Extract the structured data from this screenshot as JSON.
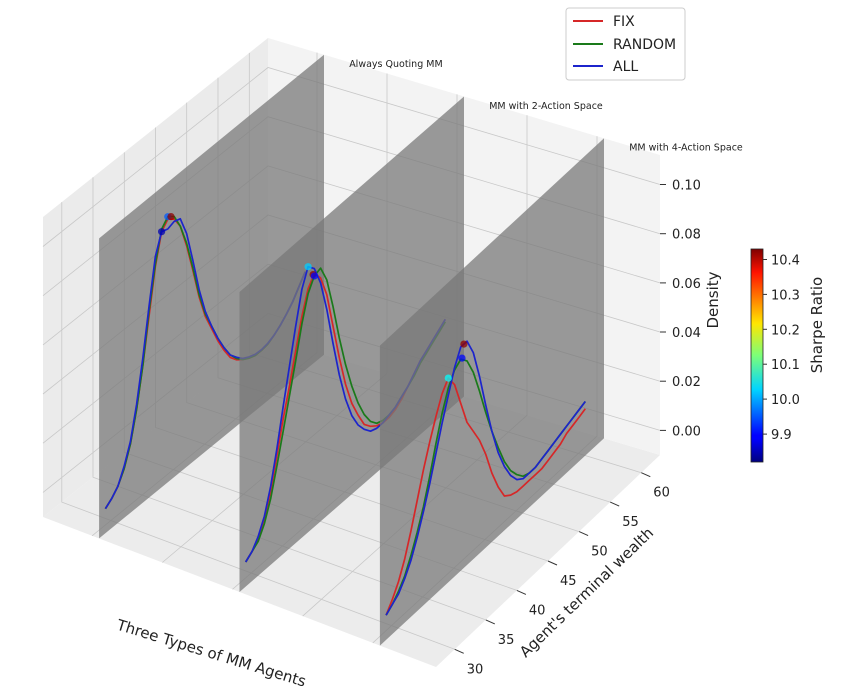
{
  "chart_data": {
    "type": "line",
    "projection": "3d",
    "xlabel": "Three Types of MM Agents",
    "ylabel": "Agent's terminal wealth",
    "zlabel": "Density",
    "y_ticks": [
      "30",
      "35",
      "40",
      "45",
      "50",
      "55",
      "60"
    ],
    "z_ticks": [
      "0.00",
      "0.02",
      "0.04",
      "0.06",
      "0.08",
      "0.10"
    ],
    "ylim": [
      27,
      63
    ],
    "zlim": [
      -0.01,
      0.112
    ],
    "panels": [
      {
        "label": "Always Quoting MM"
      },
      {
        "label": "MM with 2-Action Space"
      },
      {
        "label": "MM with 4-Action Space"
      }
    ],
    "x": [
      28,
      29,
      30,
      31,
      32,
      33,
      34,
      35,
      36,
      37,
      38,
      39,
      40,
      41,
      42,
      43,
      44,
      45,
      46,
      47,
      48,
      49,
      50,
      51,
      52,
      53,
      54,
      55,
      56,
      57,
      58,
      59,
      60
    ],
    "series": [
      {
        "name": "FIX",
        "color": "#d62728",
        "values": [
          [
            0.0,
            0.002,
            0.005,
            0.01,
            0.018,
            0.03,
            0.046,
            0.064,
            0.082,
            0.094,
            0.097,
            0.095,
            0.09,
            0.08,
            0.068,
            0.055,
            0.045,
            0.038,
            0.031,
            0.025,
            0.02,
            0.017,
            0.015,
            0.0135,
            0.0125,
            0.0125,
            0.013,
            0.0145,
            0.0165,
            0.019,
            0.022,
            0.026,
            0.03
          ],
          [
            0.0,
            0.002,
            0.005,
            0.011,
            0.02,
            0.032,
            0.045,
            0.056,
            0.068,
            0.08,
            0.089,
            0.093,
            0.089,
            0.08,
            0.065,
            0.05,
            0.037,
            0.027,
            0.02,
            0.014,
            0.011,
            0.009,
            0.008,
            0.008,
            0.009,
            0.011,
            0.014,
            0.017,
            0.02,
            0.022,
            0.024,
            0.026,
            0.028
          ],
          [
            0.0,
            0.004,
            0.009,
            0.016,
            0.025,
            0.035,
            0.045,
            0.054,
            0.062,
            0.069,
            0.073,
            0.068,
            0.058,
            0.048,
            0.042,
            0.036,
            0.028,
            0.018,
            0.01,
            0.004,
            0.002,
            0.001,
            0.001,
            0.001,
            0.001,
            0.001,
            0.002,
            0.003,
            0.004,
            0.006,
            0.007,
            0.008,
            0.009
          ]
        ]
      },
      {
        "name": "RANDOM",
        "color": "#1a7a1a",
        "values": [
          [
            0.0,
            0.002,
            0.005,
            0.01,
            0.018,
            0.03,
            0.046,
            0.066,
            0.083,
            0.095,
            0.098,
            0.096,
            0.09,
            0.081,
            0.069,
            0.056,
            0.046,
            0.039,
            0.032,
            0.026,
            0.021,
            0.0175,
            0.015,
            0.0135,
            0.0125,
            0.0125,
            0.013,
            0.0145,
            0.0165,
            0.019,
            0.022,
            0.026,
            0.03
          ],
          [
            0.0,
            0.002,
            0.004,
            0.009,
            0.017,
            0.028,
            0.04,
            0.052,
            0.064,
            0.077,
            0.087,
            0.092,
            0.093,
            0.086,
            0.073,
            0.058,
            0.045,
            0.034,
            0.025,
            0.018,
            0.013,
            0.01,
            0.009,
            0.009,
            0.01,
            0.012,
            0.014,
            0.016,
            0.019,
            0.021,
            0.023,
            0.025,
            0.027
          ],
          [
            0.0,
            0.002,
            0.005,
            0.009,
            0.015,
            0.022,
            0.03,
            0.04,
            0.051,
            0.061,
            0.069,
            0.074,
            0.076,
            0.073,
            0.066,
            0.056,
            0.045,
            0.035,
            0.026,
            0.018,
            0.012,
            0.008,
            0.005,
            0.004,
            0.004,
            0.005,
            0.006,
            0.007,
            0.008,
            0.009,
            0.01,
            0.011,
            0.012
          ]
        ]
      },
      {
        "name": "ALL",
        "color": "#1c24cc",
        "values": [
          [
            0.0,
            0.002,
            0.005,
            0.011,
            0.019,
            0.032,
            0.049,
            0.068,
            0.086,
            0.094,
            0.093,
            0.094,
            0.093,
            0.085,
            0.072,
            0.058,
            0.047,
            0.039,
            0.032,
            0.026,
            0.021,
            0.018,
            0.0155,
            0.014,
            0.013,
            0.0128,
            0.0133,
            0.0145,
            0.0165,
            0.019,
            0.022,
            0.026,
            0.03
          ],
          [
            0.0,
            0.002,
            0.006,
            0.012,
            0.022,
            0.035,
            0.05,
            0.064,
            0.078,
            0.091,
            0.098,
            0.095,
            0.087,
            0.074,
            0.058,
            0.043,
            0.031,
            0.022,
            0.016,
            0.012,
            0.009,
            0.008,
            0.008,
            0.009,
            0.01,
            0.012,
            0.014,
            0.017,
            0.02,
            0.022,
            0.024,
            0.026,
            0.028
          ],
          [
            0.0,
            0.002,
            0.004,
            0.008,
            0.013,
            0.02,
            0.028,
            0.037,
            0.047,
            0.057,
            0.066,
            0.075,
            0.081,
            0.081,
            0.074,
            0.062,
            0.048,
            0.035,
            0.024,
            0.016,
            0.01,
            0.006,
            0.004,
            0.004,
            0.004,
            0.005,
            0.006,
            0.007,
            0.008,
            0.009,
            0.01,
            0.011,
            0.012
          ]
        ]
      }
    ],
    "peak_markers": [
      [
        {
          "x": 37,
          "y": 0.094,
          "sharpe": 9.85
        },
        {
          "x": 38,
          "y": 0.098,
          "sharpe": 9.95
        },
        {
          "x": 38.5,
          "y": 0.097,
          "sharpe": 10.42
        }
      ],
      [
        {
          "x": 38,
          "y": 0.098,
          "sharpe": 10.02
        },
        {
          "x": 38.8,
          "y": 0.093,
          "sharpe": 10.42
        },
        {
          "x": 39,
          "y": 0.092,
          "sharpe": 9.9
        }
      ],
      [
        {
          "x": 38,
          "y": 0.073,
          "sharpe": 10.05
        },
        {
          "x": 40.5,
          "y": 0.081,
          "sharpe": 10.42
        },
        {
          "x": 40.2,
          "y": 0.076,
          "sharpe": 9.9
        }
      ]
    ],
    "legend": {
      "position": "top-right",
      "entries": [
        {
          "name": "FIX",
          "color": "#d62728"
        },
        {
          "name": "RANDOM",
          "color": "#1a7a1a"
        },
        {
          "name": "ALL",
          "color": "#1c24cc"
        }
      ]
    },
    "colorbar": {
      "label": "Sharpe Ratio",
      "colormap": "jet",
      "range": [
        9.82,
        10.43
      ],
      "ticks": [
        "9.9",
        "10.0",
        "10.1",
        "10.2",
        "10.3",
        "10.4"
      ],
      "tick_values": [
        9.9,
        10.0,
        10.1,
        10.2,
        10.3,
        10.4
      ]
    },
    "grid": true
  }
}
